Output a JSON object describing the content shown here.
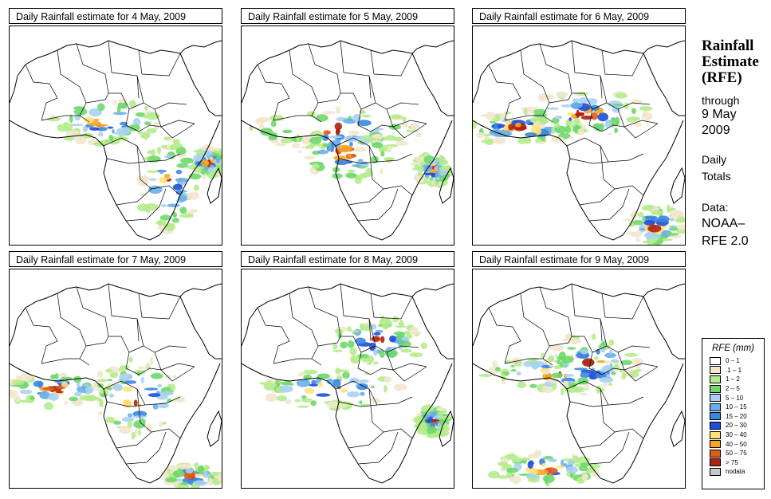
{
  "panels": [
    {
      "title": "Daily Rainfall estimate for  4 May, 2009"
    },
    {
      "title": "Daily Rainfall estimate for  5 May, 2009"
    },
    {
      "title": "Daily Rainfall estimate for  6 May, 2009"
    },
    {
      "title": "Daily Rainfall estimate for  7 May, 2009"
    },
    {
      "title": "Daily Rainfall estimate for  8 May, 2009"
    },
    {
      "title": "Daily Rainfall estimate for  9 May, 2009"
    }
  ],
  "side": {
    "title_line1": "Rainfall",
    "title_line2": "Estimate",
    "title_line3": "(RFE)",
    "through": "through",
    "date_line1": "9 May",
    "date_line2": "2009",
    "totals_line1": "Daily",
    "totals_line2": "Totals",
    "data_label": "Data:",
    "source_line1": "NOAA–",
    "source_line2": "RFE 2.0"
  },
  "legend": {
    "title": "RFE (mm)",
    "items": [
      {
        "label": "0 – 1",
        "color": "#ffffff"
      },
      {
        "label": ".1 – 1",
        "color": "#f2e6cc"
      },
      {
        "label": "1 – 2",
        "color": "#b4ec8c"
      },
      {
        "label": "2 – 5",
        "color": "#6fd86b"
      },
      {
        "label": "5 – 10",
        "color": "#a9d0f2"
      },
      {
        "label": "10 – 15",
        "color": "#6aaee8"
      },
      {
        "label": "15 – 20",
        "color": "#3a86e0"
      },
      {
        "label": "20 – 30",
        "color": "#1f4fd6"
      },
      {
        "label": "30 – 40",
        "color": "#ffe27a"
      },
      {
        "label": "40 – 50",
        "color": "#f5a623"
      },
      {
        "label": "50 – 75",
        "color": "#e05a1a"
      },
      {
        "label": "> 75",
        "color": "#b0200e"
      },
      {
        "label": "nodata",
        "color": "#c8c8c8"
      }
    ]
  }
}
